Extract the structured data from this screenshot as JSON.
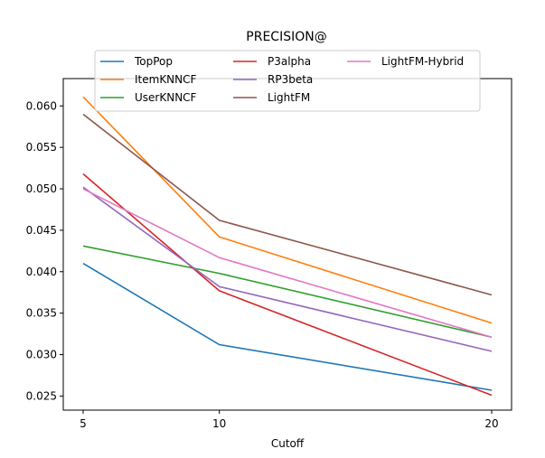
{
  "chart_data": {
    "type": "line",
    "title": "PRECISION@",
    "xlabel": "Cutoff",
    "ylabel": "",
    "x": [
      5,
      10,
      20
    ],
    "x_tick_labels": [
      "5",
      "10",
      "20"
    ],
    "ylim": [
      0.0233,
      0.0633
    ],
    "y_ticks": [
      0.025,
      0.03,
      0.035,
      0.04,
      0.045,
      0.05,
      0.055,
      0.06
    ],
    "y_tick_labels": [
      "0.025",
      "0.030",
      "0.035",
      "0.040",
      "0.045",
      "0.050",
      "0.055",
      "0.060"
    ],
    "grid": false,
    "legend_position": "top-center",
    "series": [
      {
        "name": "TopPop",
        "color": "#1f77b4",
        "values": [
          0.041,
          0.0312,
          0.0257
        ]
      },
      {
        "name": "ItemKNNCF",
        "color": "#ff7f0e",
        "values": [
          0.0611,
          0.0442,
          0.0338
        ]
      },
      {
        "name": "UserKNNCF",
        "color": "#2ca02c",
        "values": [
          0.0431,
          0.0398,
          0.0321
        ]
      },
      {
        "name": "P3alpha",
        "color": "#d62728",
        "values": [
          0.0518,
          0.0377,
          0.0251
        ]
      },
      {
        "name": "RP3beta",
        "color": "#9467bd",
        "values": [
          0.0502,
          0.0382,
          0.0304
        ]
      },
      {
        "name": "LightFM",
        "color": "#8c564b",
        "values": [
          0.059,
          0.0462,
          0.0372
        ]
      },
      {
        "name": "LightFM-Hybrid",
        "color": "#e377c2",
        "values": [
          0.05,
          0.0417,
          0.0321
        ]
      }
    ]
  }
}
